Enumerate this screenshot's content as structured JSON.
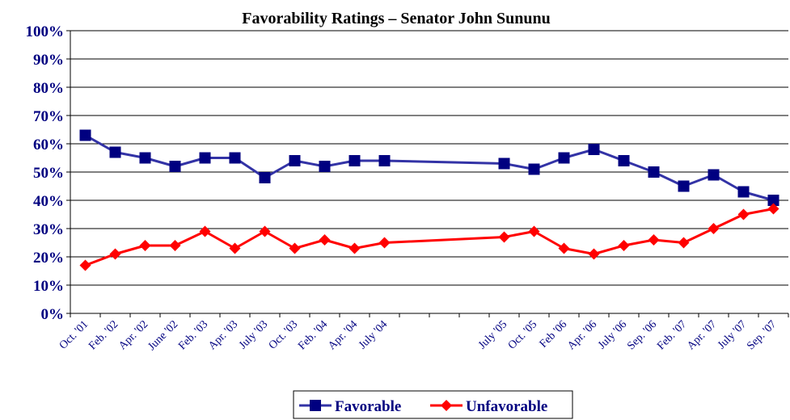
{
  "chart_data": {
    "type": "line",
    "title": "Favorability Ratings – Senator John Sununu",
    "xlabel": "",
    "ylabel": "",
    "ylim": [
      0,
      100
    ],
    "yticks": [
      "0%",
      "10%",
      "20%",
      "30%",
      "40%",
      "50%",
      "60%",
      "70%",
      "80%",
      "90%",
      "100%"
    ],
    "grid": true,
    "legend_position": "bottom-center",
    "x_slot_count": 24,
    "categories": [
      {
        "label": "Oct. '01",
        "slot": 0
      },
      {
        "label": "Feb. '02",
        "slot": 1
      },
      {
        "label": "Apr. '02",
        "slot": 2
      },
      {
        "label": "June '02",
        "slot": 3
      },
      {
        "label": "Feb. '03",
        "slot": 4
      },
      {
        "label": "Apr. '03",
        "slot": 5
      },
      {
        "label": "July '03",
        "slot": 6
      },
      {
        "label": "Oct. '03",
        "slot": 7
      },
      {
        "label": "Feb. '04",
        "slot": 8
      },
      {
        "label": "Apr. '04",
        "slot": 9
      },
      {
        "label": "July '04",
        "slot": 10
      },
      {
        "label": "July '05",
        "slot": 14
      },
      {
        "label": "Oct. '05",
        "slot": 15
      },
      {
        "label": "Feb '06",
        "slot": 16
      },
      {
        "label": "Apr. '06",
        "slot": 17
      },
      {
        "label": "July '06",
        "slot": 18
      },
      {
        "label": "Sep. '06",
        "slot": 19
      },
      {
        "label": "Feb. '07",
        "slot": 20
      },
      {
        "label": "Apr. '07",
        "slot": 21
      },
      {
        "label": "July '07",
        "slot": 22
      },
      {
        "label": "Sep. '07",
        "slot": 23
      }
    ],
    "series": [
      {
        "name": "Favorable",
        "color": "#000080",
        "line_color": "#3333a6",
        "marker": "square",
        "values": [
          63,
          57,
          55,
          52,
          55,
          55,
          48,
          54,
          52,
          54,
          54,
          53,
          51,
          55,
          58,
          54,
          50,
          45,
          49,
          43,
          40
        ]
      },
      {
        "name": "Unfavorable",
        "color": "#ff0000",
        "line_color": "#ff0000",
        "marker": "diamond",
        "values": [
          17,
          21,
          24,
          24,
          29,
          23,
          29,
          23,
          26,
          23,
          25,
          27,
          29,
          23,
          21,
          24,
          26,
          25,
          30,
          35,
          37
        ]
      }
    ]
  }
}
